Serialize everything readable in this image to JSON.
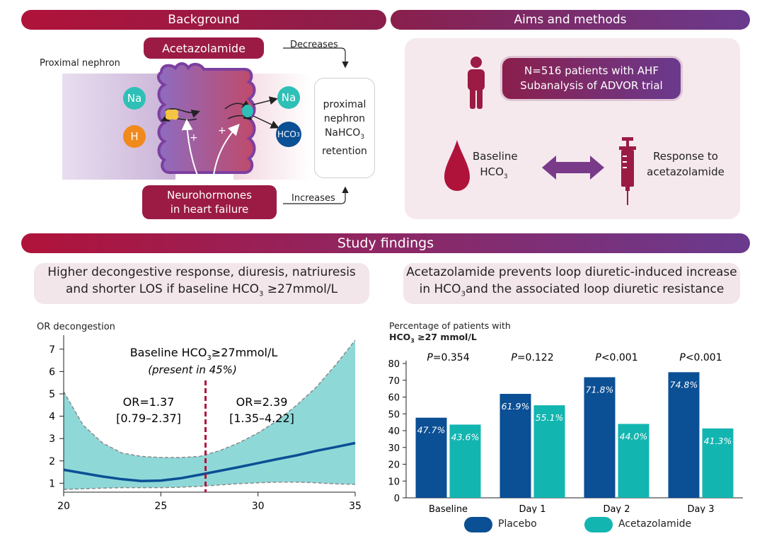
{
  "banners": {
    "background": "Background",
    "aims": "Aims and methods",
    "findings": "Study findings"
  },
  "mechanism": {
    "drug": "Acetazolamide",
    "region": "Proximal nephron",
    "decreases": "Decreases",
    "increases": "Increases",
    "neuro_line1": "Neurohormones",
    "neuro_line2": "in heart failure",
    "ion_na_left": "Na",
    "ion_h": "H",
    "ion_na_right": "Na",
    "ion_hco3": "HCO",
    "ion_hco3_sub": "3",
    "plus": "+",
    "retention": {
      "l1": "proximal",
      "l2": "nephron",
      "l3": "NaHCO",
      "l3_sub": "3",
      "l4": "retention"
    }
  },
  "aims": {
    "box_line1": "N=516 patients with AHF",
    "box_line2": "Subanalysis of ADVOR trial",
    "baseline_l1": "Baseline",
    "baseline_l2": "HCO",
    "baseline_sub": "3",
    "response_l1": "Response to",
    "response_l2": "acetazolamide"
  },
  "findings": {
    "left_l1": "Higher decongestive response, diuresis, natriuresis",
    "left_l2a": "and shorter LOS if baseline HCO",
    "left_l2_sub": "3",
    "left_l2b": " ≥27mmol/L",
    "right_l1": "Acetazolamide prevents loop diuretic-induced increase",
    "right_l2a": "in HCO",
    "right_l2_sub": "3",
    "right_l2b": "and the associated loop diuretic resistance"
  },
  "colors": {
    "banner_left": "#b0133a",
    "banner_right": "#6a3a8e",
    "placebo": "#0b4f94",
    "acetazolamide": "#13b5b0",
    "teal_band": "#8fd8d8",
    "curve": "#0b4f94",
    "threshold": "#b0133a"
  },
  "chart_data": [
    {
      "type": "area",
      "ylabel": "OR decongestion",
      "xlim": [
        20,
        35
      ],
      "ylim": [
        0.6,
        7.5
      ],
      "xticks": [
        20,
        25,
        30,
        35
      ],
      "yticks": [
        1,
        2,
        3,
        4,
        5,
        6,
        7
      ],
      "threshold_x": 27.3,
      "annotation_title_a": "Baseline HCO",
      "annotation_title_sub": "3",
      "annotation_title_b": "≥27mmol/L",
      "annotation_sub": "(present in 45%)",
      "left_or": "OR=1.37",
      "left_ci": "[0.79–2.37]",
      "right_or": "OR=2.39",
      "right_ci": "[1.35–4.22]",
      "curve": {
        "x": [
          20,
          21,
          22,
          23,
          24,
          25,
          26,
          27,
          28,
          29,
          30,
          31,
          32,
          33,
          34,
          35
        ],
        "y": [
          1.6,
          1.45,
          1.3,
          1.18,
          1.1,
          1.12,
          1.22,
          1.38,
          1.55,
          1.72,
          1.9,
          2.08,
          2.25,
          2.45,
          2.62,
          2.8
        ]
      },
      "upper": {
        "x": [
          20,
          21,
          22,
          23,
          24,
          25,
          26,
          27,
          28,
          29,
          30,
          31,
          32,
          33,
          34,
          35
        ],
        "y": [
          5.1,
          3.6,
          2.8,
          2.35,
          2.2,
          2.15,
          2.15,
          2.2,
          2.45,
          2.8,
          3.25,
          3.8,
          4.5,
          5.3,
          6.3,
          7.4
        ]
      },
      "lower": {
        "x": [
          20,
          21,
          22,
          23,
          24,
          25,
          26,
          27,
          28,
          29,
          30,
          31,
          32,
          33,
          34,
          35
        ],
        "y": [
          0.72,
          0.75,
          0.78,
          0.8,
          0.8,
          0.8,
          0.82,
          0.86,
          0.92,
          0.98,
          1.02,
          1.05,
          1.05,
          1.02,
          0.97,
          0.95
        ]
      }
    },
    {
      "type": "bar",
      "title_l1": "Percentage of patients with",
      "title_l2a": "HCO",
      "title_l2_sub": "3",
      "title_l2b": " ≥27 mmol/L",
      "categories": [
        "Baseline",
        "Day 1",
        "Day 2",
        "Day 3"
      ],
      "p_values": [
        {
          "italic": "P",
          "rest": "=0.354"
        },
        {
          "italic": "P",
          "rest": "=0.122"
        },
        {
          "italic": "P",
          "rest": "<0.001"
        },
        {
          "italic": "P",
          "rest": "<0.001"
        }
      ],
      "series": [
        {
          "name": "Placebo",
          "values": [
            47.7,
            61.9,
            71.8,
            74.8
          ],
          "labels": [
            "47.7%",
            "61.9%",
            "71.8%",
            "74.8%"
          ]
        },
        {
          "name": "Acetazolamide",
          "values": [
            43.6,
            55.1,
            44.0,
            41.3
          ],
          "labels": [
            "43.6%",
            "55.1%",
            "44.0%",
            "41.3%"
          ]
        }
      ],
      "ylim": [
        0,
        80
      ],
      "yticks": [
        0,
        10,
        20,
        30,
        40,
        50,
        60,
        70,
        80
      ]
    }
  ]
}
